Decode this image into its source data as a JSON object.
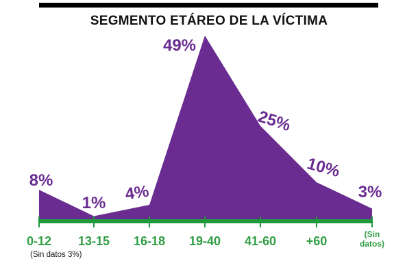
{
  "chart_data": {
    "type": "area",
    "title": "SEGMENTO ETÁREO DE LA VÍCTIMA",
    "categories": [
      "0-12",
      "13-15",
      "16-18",
      "19-40",
      "41-60",
      "+60",
      "Sin datos"
    ],
    "values": [
      8,
      1,
      4,
      49,
      25,
      10,
      3
    ],
    "data_labels": [
      "8%",
      "1%",
      "4%",
      "49%",
      "25%",
      "10%",
      "3%"
    ],
    "tick_labels": [
      [
        "0-12"
      ],
      [
        "13-15"
      ],
      [
        "16-18"
      ],
      [
        "19-40"
      ],
      [
        "41-60"
      ],
      [
        "+60"
      ],
      [
        "(Sin",
        "datos)"
      ]
    ],
    "footnote": "(Sin datos 3%)",
    "ylim": [
      0,
      49
    ],
    "grid": false,
    "colors": {
      "area": "#6a2c91",
      "axis": "#1e9a3c",
      "tick_label": "#2f9e44",
      "data_label": "#6a2c91"
    }
  }
}
